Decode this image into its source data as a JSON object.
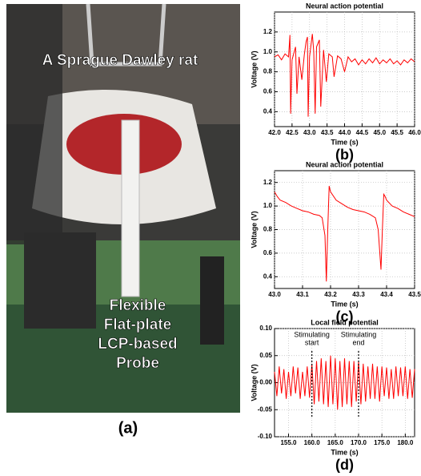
{
  "photo": {
    "top_label": "A Sprague Dawley rat",
    "bottom_label": [
      "Flexible",
      "Flat-plate",
      "LCP-based",
      "Probe"
    ],
    "caption": "(a)"
  },
  "chart_data": [
    {
      "type": "line",
      "title": "Neural action potential",
      "xlabel": "Time (s)",
      "ylabel": "Voltage (V)",
      "caption": "(b)",
      "color": "#ff0000",
      "grid": true,
      "xlim": [
        42.0,
        46.0
      ],
      "ylim": [
        0.25,
        1.4
      ],
      "xticks": [
        {
          "value": 42,
          "label": "42.0"
        },
        42.5,
        {
          "value": 43,
          "label": "43.0"
        },
        43.5,
        {
          "value": 44,
          "label": "44.0"
        },
        44.5,
        {
          "value": 45,
          "label": "45.0"
        },
        45.5,
        {
          "value": 46,
          "label": "46.0"
        }
      ],
      "yticks": [
        0.4,
        0.6,
        0.8,
        {
          "value": 1,
          "label": "1.0"
        },
        1.2
      ],
      "x": [
        42.0,
        42.1,
        42.2,
        42.3,
        42.4,
        42.44,
        42.46,
        42.5,
        42.6,
        42.64,
        42.7,
        42.78,
        42.85,
        42.9,
        42.94,
        42.96,
        43.0,
        43.08,
        43.12,
        43.16,
        43.2,
        43.28,
        43.32,
        43.4,
        43.48,
        43.55,
        43.65,
        43.7,
        43.8,
        43.9,
        44.0,
        44.1,
        44.2,
        44.3,
        44.4,
        44.5,
        44.6,
        44.7,
        44.8,
        44.9,
        45.0,
        45.1,
        45.2,
        45.3,
        45.4,
        45.5,
        45.6,
        45.7,
        45.8,
        45.9,
        46.0
      ],
      "values": [
        0.95,
        0.97,
        0.92,
        0.98,
        0.95,
        1.17,
        0.38,
        0.92,
        1.05,
        0.58,
        0.95,
        0.72,
        0.97,
        1.1,
        1.15,
        0.35,
        0.95,
        1.18,
        1.0,
        0.38,
        1.05,
        1.12,
        0.45,
        1.02,
        0.7,
        0.98,
        0.95,
        0.75,
        0.96,
        0.93,
        0.8,
        0.95,
        0.9,
        0.93,
        0.87,
        0.92,
        0.88,
        0.93,
        0.89,
        0.94,
        0.88,
        0.92,
        0.89,
        0.93,
        0.88,
        0.91,
        0.87,
        0.92,
        0.89,
        0.93,
        0.9
      ]
    },
    {
      "type": "line",
      "title": "Neural action potential",
      "xlabel": "Time (s)",
      "ylabel": "Voltage (V)",
      "caption": "(c)",
      "color": "#ff0000",
      "grid": true,
      "xlim": [
        43.0,
        43.5
      ],
      "ylim": [
        0.3,
        1.3
      ],
      "xticks": [
        {
          "value": 43,
          "label": "43.0"
        },
        43.1,
        43.2,
        43.3,
        43.4,
        43.5
      ],
      "yticks": [
        0.4,
        0.6,
        0.8,
        {
          "value": 1,
          "label": "1.0"
        },
        1.2
      ],
      "x": [
        43.0,
        43.01,
        43.02,
        43.04,
        43.06,
        43.08,
        43.1,
        43.12,
        43.14,
        43.16,
        43.17,
        43.18,
        43.185,
        43.19,
        43.195,
        43.2,
        43.22,
        43.24,
        43.26,
        43.28,
        43.3,
        43.32,
        43.34,
        43.36,
        43.37,
        43.38,
        43.385,
        43.39,
        43.395,
        43.4,
        43.42,
        43.44,
        43.46,
        43.48,
        43.5
      ],
      "values": [
        1.12,
        1.08,
        1.05,
        1.03,
        1.0,
        0.98,
        0.96,
        0.95,
        0.93,
        0.92,
        0.9,
        0.75,
        0.36,
        0.8,
        1.17,
        1.12,
        1.05,
        1.02,
        0.99,
        0.97,
        0.96,
        0.95,
        0.93,
        0.9,
        0.8,
        0.46,
        0.8,
        1.1,
        1.08,
        1.05,
        1.0,
        0.98,
        0.95,
        0.93,
        0.91
      ]
    },
    {
      "type": "line",
      "title": "Local field potential",
      "xlabel": "Time (s)",
      "ylabel": "Voltage (V)",
      "caption": "(d)",
      "color": "#ff0000",
      "grid": true,
      "xlim": [
        152,
        182
      ],
      "ylim": [
        -0.1,
        0.1
      ],
      "xticks": [
        {
          "value": 155,
          "label": "155.0"
        },
        {
          "value": 160,
          "label": "160.0"
        },
        {
          "value": 165,
          "label": "165.0"
        },
        {
          "value": 170,
          "label": "170.0"
        },
        {
          "value": 175,
          "label": "175.0"
        },
        {
          "value": 180,
          "label": "180.0"
        }
      ],
      "yticks": [
        {
          "value": -0.1,
          "label": "-0.10"
        },
        -0.05,
        {
          "value": 0,
          "label": "0.00"
        },
        0.05,
        {
          "value": 0.1,
          "label": "0.10"
        }
      ],
      "annotations": [
        {
          "text": [
            "Stimulating",
            "start"
          ],
          "x": 160
        },
        {
          "text": [
            "Stimulating",
            "end"
          ],
          "x": 170
        }
      ],
      "x": [
        152,
        152.5,
        153,
        153.5,
        154,
        154.5,
        155,
        155.5,
        156,
        156.5,
        157,
        157.5,
        158,
        158.5,
        159,
        159.5,
        160,
        160.5,
        161,
        161.5,
        162,
        162.5,
        163,
        163.5,
        164,
        164.5,
        165,
        165.5,
        166,
        166.5,
        167,
        167.5,
        168,
        168.5,
        169,
        169.5,
        170,
        170.5,
        171,
        171.5,
        172,
        172.5,
        173,
        173.5,
        174,
        174.5,
        175,
        175.5,
        176,
        176.5,
        177,
        177.5,
        178,
        178.5,
        179,
        179.5,
        180,
        180.5,
        181,
        181.5,
        182
      ],
      "values": [
        0.02,
        -0.025,
        0.03,
        -0.02,
        0.025,
        -0.03,
        0.02,
        -0.025,
        0.03,
        -0.02,
        0.028,
        -0.03,
        0.02,
        -0.025,
        0.03,
        -0.028,
        0.035,
        -0.04,
        0.04,
        -0.035,
        0.045,
        -0.04,
        0.04,
        -0.045,
        0.05,
        -0.04,
        0.045,
        -0.05,
        0.04,
        -0.045,
        0.045,
        -0.04,
        0.04,
        -0.045,
        0.04,
        -0.035,
        0.04,
        -0.04,
        0.035,
        -0.035,
        0.03,
        -0.03,
        0.035,
        -0.03,
        0.03,
        -0.035,
        0.03,
        -0.025,
        0.028,
        -0.03,
        0.025,
        -0.03,
        0.03,
        -0.025,
        0.028,
        -0.025,
        0.03,
        -0.03,
        0.025,
        -0.028,
        0.025
      ]
    }
  ]
}
